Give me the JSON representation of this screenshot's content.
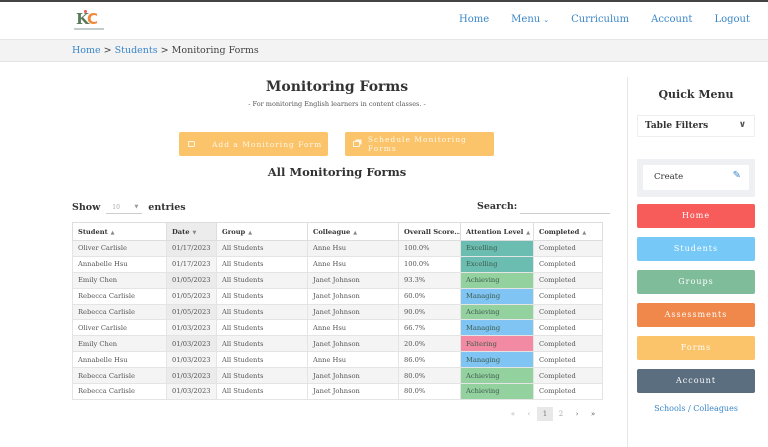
{
  "header": {
    "logo": {
      "text_k": "K",
      "text_c": "C",
      "alt": "KIC logo"
    },
    "nav": [
      {
        "label": "Home"
      },
      {
        "label": "Menu",
        "has_dropdown": true,
        "chevron": "⌄"
      },
      {
        "label": "Curriculum"
      },
      {
        "label": "Account"
      },
      {
        "label": "Logout"
      }
    ]
  },
  "breadcrumb": {
    "items": [
      {
        "label": "Home",
        "link": true
      },
      {
        "label": "Students",
        "link": true
      },
      {
        "label": "Monitoring Forms",
        "link": false
      }
    ],
    "separator": ">"
  },
  "main": {
    "title": "Monitoring Forms",
    "subtitle": "- For monitoring English learners in content classes. -",
    "buttons": {
      "add": {
        "label": "Add a Monitoring Form",
        "icon": "calendar-check-icon"
      },
      "schedule": {
        "label": "Schedule Monitoring Forms",
        "icon": "copy-icon"
      }
    },
    "section_title": "All Monitoring Forms",
    "show_label": "Show",
    "entries_label": "entries",
    "page_length": "10",
    "search_label": "Search:",
    "search_value": "",
    "table": {
      "columns": [
        {
          "label": "Student",
          "sort": "▲"
        },
        {
          "label": "Date",
          "sort": "▼",
          "sorted": true
        },
        {
          "label": "Group",
          "sort": "▲"
        },
        {
          "label": "Colleague",
          "sort": "▲"
        },
        {
          "label": "Overall Score...",
          "sort": ""
        },
        {
          "label": "Attention Level",
          "sort": "▲"
        },
        {
          "label": "Completed",
          "sort": "▲"
        }
      ],
      "rows": [
        {
          "student": "Oliver Carlisle",
          "date": "01/17/2023",
          "group": "All Students",
          "colleague": "Anne Hsu",
          "score": "100.0%",
          "level": "Excelling",
          "completed": "Completed"
        },
        {
          "student": "Annabelle Hsu",
          "date": "01/17/2023",
          "group": "All Students",
          "colleague": "Anne Hsu",
          "score": "100.0%",
          "level": "Excelling",
          "completed": "Completed"
        },
        {
          "student": "Emily Chen",
          "date": "01/05/2023",
          "group": "All Students",
          "colleague": "Janet Johnson",
          "score": "93.3%",
          "level": "Achieving",
          "completed": "Completed"
        },
        {
          "student": "Rebecca Carlisle",
          "date": "01/05/2023",
          "group": "All Students",
          "colleague": "Janet Johnson",
          "score": "60.0%",
          "level": "Managing",
          "completed": "Completed"
        },
        {
          "student": "Rebecca Carlisle",
          "date": "01/05/2023",
          "group": "All Students",
          "colleague": "Janet Johnson",
          "score": "90.0%",
          "level": "Achieving",
          "completed": "Completed"
        },
        {
          "student": "Oliver Carlisle",
          "date": "01/03/2023",
          "group": "All Students",
          "colleague": "Anne Hsu",
          "score": "66.7%",
          "level": "Managing",
          "completed": "Completed"
        },
        {
          "student": "Emily Chen",
          "date": "01/03/2023",
          "group": "All Students",
          "colleague": "Janet Johnson",
          "score": "20.0%",
          "level": "Faltering",
          "completed": "Completed"
        },
        {
          "student": "Annabelle Hsu",
          "date": "01/03/2023",
          "group": "All Students",
          "colleague": "Anne Hsu",
          "score": "86.0%",
          "level": "Managing",
          "completed": "Completed"
        },
        {
          "student": "Rebecca Carlisle",
          "date": "01/03/2023",
          "group": "All Students",
          "colleague": "Janet Johnson",
          "score": "80.0%",
          "level": "Achieving",
          "completed": "Completed"
        },
        {
          "student": "Rebecca Carlisle",
          "date": "01/03/2023",
          "group": "All Students",
          "colleague": "Janet Johnson",
          "score": "80.0%",
          "level": "Achieving",
          "completed": "Completed"
        }
      ],
      "level_colors": {
        "Excelling": "#6cbdb1",
        "Achieving": "#93d19f",
        "Managing": "#7fc4f2",
        "Faltering": "#f28aa3"
      }
    },
    "pagination": {
      "first": "«",
      "prev": "‹",
      "pages": [
        "1",
        "2"
      ],
      "current": "1",
      "next": "›",
      "last": "»"
    }
  },
  "sidebar": {
    "title": "Quick Menu",
    "filters_label": "Table Filters",
    "filters_chevron": "⌄",
    "create_label": "Create",
    "create_icon": "✎",
    "buttons": [
      {
        "label": "Home",
        "color": "#f85c5a"
      },
      {
        "label": "Students",
        "color": "#76c8f7"
      },
      {
        "label": "Groups",
        "color": "#7fbc9a"
      },
      {
        "label": "Assessments",
        "color": "#ef884a"
      },
      {
        "label": "Forms",
        "color": "#fbc36a"
      },
      {
        "label": "Account",
        "color": "#5b6e80"
      }
    ],
    "schools_link": "Schools / Colleagues"
  }
}
